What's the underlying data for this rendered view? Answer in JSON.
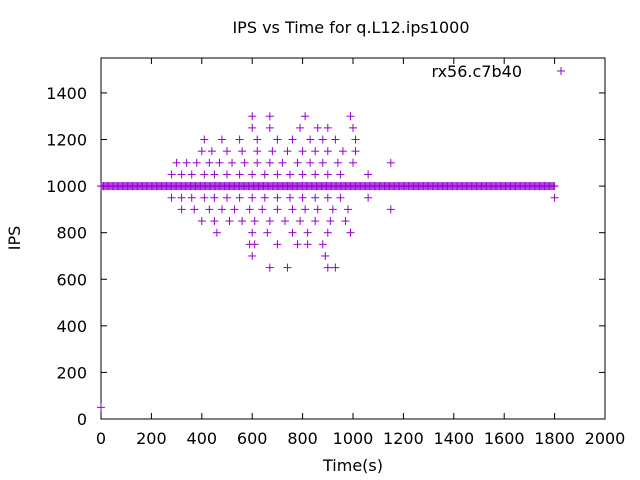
{
  "chart_data": {
    "type": "scatter",
    "title": "IPS vs Time for q.L12.ips1000",
    "xlabel": "Time(s)",
    "ylabel": "IPS",
    "xlim": [
      0,
      2000
    ],
    "ylim": [
      0,
      1550
    ],
    "x_ticks": [
      0,
      200,
      400,
      600,
      800,
      1000,
      1200,
      1400,
      1600,
      1800,
      2000
    ],
    "y_ticks": [
      0,
      200,
      400,
      600,
      800,
      1000,
      1200,
      1400
    ],
    "grid": false,
    "legend_position": "top-right",
    "series": [
      {
        "name": "rx56.c7b40",
        "color": "#9400d3",
        "marker": "plus",
        "baseline": {
          "y": 1000,
          "x_start": 0,
          "x_end": 1800
        },
        "points": [
          [
            0,
            50
          ],
          [
            1800,
            950
          ],
          [
            600,
            1300
          ],
          [
            670,
            1300
          ],
          [
            810,
            1300
          ],
          [
            990,
            1300
          ],
          [
            600,
            1250
          ],
          [
            670,
            1250
          ],
          [
            790,
            1250
          ],
          [
            860,
            1250
          ],
          [
            900,
            1250
          ],
          [
            1000,
            1250
          ],
          [
            410,
            1200
          ],
          [
            480,
            1200
          ],
          [
            550,
            1200
          ],
          [
            620,
            1200
          ],
          [
            700,
            1200
          ],
          [
            760,
            1200
          ],
          [
            830,
            1200
          ],
          [
            880,
            1200
          ],
          [
            930,
            1200
          ],
          [
            1010,
            1200
          ],
          [
            400,
            1150
          ],
          [
            440,
            1150
          ],
          [
            500,
            1150
          ],
          [
            560,
            1150
          ],
          [
            620,
            1150
          ],
          [
            680,
            1150
          ],
          [
            740,
            1150
          ],
          [
            800,
            1150
          ],
          [
            850,
            1150
          ],
          [
            900,
            1150
          ],
          [
            960,
            1150
          ],
          [
            1010,
            1150
          ],
          [
            300,
            1100
          ],
          [
            340,
            1100
          ],
          [
            380,
            1100
          ],
          [
            430,
            1100
          ],
          [
            470,
            1100
          ],
          [
            520,
            1100
          ],
          [
            570,
            1100
          ],
          [
            620,
            1100
          ],
          [
            670,
            1100
          ],
          [
            720,
            1100
          ],
          [
            780,
            1100
          ],
          [
            830,
            1100
          ],
          [
            880,
            1100
          ],
          [
            940,
            1100
          ],
          [
            1000,
            1100
          ],
          [
            1150,
            1100
          ],
          [
            280,
            1050
          ],
          [
            320,
            1050
          ],
          [
            360,
            1050
          ],
          [
            410,
            1050
          ],
          [
            450,
            1050
          ],
          [
            500,
            1050
          ],
          [
            550,
            1050
          ],
          [
            600,
            1050
          ],
          [
            650,
            1050
          ],
          [
            700,
            1050
          ],
          [
            750,
            1050
          ],
          [
            800,
            1050
          ],
          [
            850,
            1050
          ],
          [
            900,
            1050
          ],
          [
            950,
            1050
          ],
          [
            1060,
            1050
          ],
          [
            280,
            950
          ],
          [
            320,
            950
          ],
          [
            360,
            950
          ],
          [
            410,
            950
          ],
          [
            450,
            950
          ],
          [
            500,
            950
          ],
          [
            550,
            950
          ],
          [
            600,
            950
          ],
          [
            650,
            950
          ],
          [
            700,
            950
          ],
          [
            750,
            950
          ],
          [
            800,
            950
          ],
          [
            850,
            950
          ],
          [
            900,
            950
          ],
          [
            950,
            950
          ],
          [
            1060,
            950
          ],
          [
            320,
            900
          ],
          [
            370,
            900
          ],
          [
            430,
            900
          ],
          [
            480,
            900
          ],
          [
            530,
            900
          ],
          [
            590,
            900
          ],
          [
            640,
            900
          ],
          [
            700,
            900
          ],
          [
            760,
            900
          ],
          [
            810,
            900
          ],
          [
            860,
            900
          ],
          [
            920,
            900
          ],
          [
            980,
            900
          ],
          [
            1150,
            900
          ],
          [
            400,
            850
          ],
          [
            450,
            850
          ],
          [
            510,
            850
          ],
          [
            560,
            850
          ],
          [
            610,
            850
          ],
          [
            670,
            850
          ],
          [
            730,
            850
          ],
          [
            790,
            850
          ],
          [
            850,
            850
          ],
          [
            910,
            850
          ],
          [
            970,
            850
          ],
          [
            460,
            800
          ],
          [
            600,
            800
          ],
          [
            660,
            800
          ],
          [
            760,
            800
          ],
          [
            820,
            800
          ],
          [
            900,
            800
          ],
          [
            990,
            800
          ],
          [
            590,
            750
          ],
          [
            610,
            750
          ],
          [
            700,
            750
          ],
          [
            780,
            750
          ],
          [
            820,
            750
          ],
          [
            880,
            750
          ],
          [
            600,
            700
          ],
          [
            890,
            700
          ],
          [
            670,
            650
          ],
          [
            740,
            650
          ],
          [
            900,
            650
          ],
          [
            930,
            650
          ]
        ]
      }
    ]
  }
}
